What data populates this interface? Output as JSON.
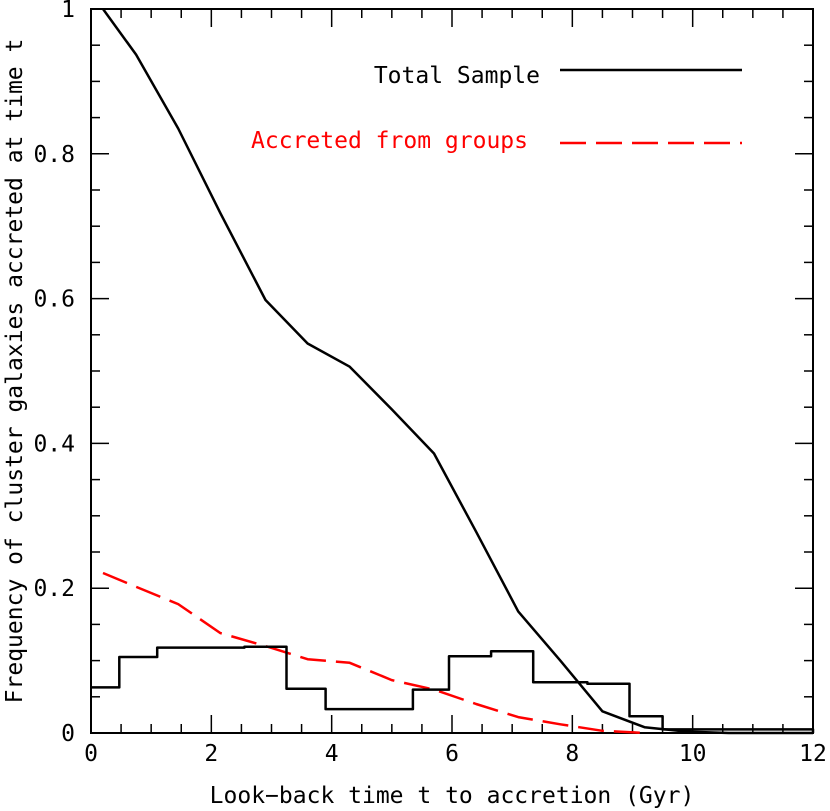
{
  "chart_data": {
    "type": "line",
    "xlabel": "Look−back time t to accretion (Gyr)",
    "ylabel": "Frequency of cluster galaxies accreted at time t",
    "xlim": [
      0,
      12
    ],
    "ylim": [
      0,
      1
    ],
    "xticks": [
      0,
      2,
      4,
      6,
      8,
      10,
      12
    ],
    "xtick_labels": [
      "0",
      "2",
      "4",
      "6",
      "8",
      "10",
      "12"
    ],
    "yticks": [
      0,
      0.2,
      0.4,
      0.6,
      0.8,
      1
    ],
    "ytick_labels": [
      "0",
      "0.2",
      "0.4",
      "0.6",
      "0.8",
      "1"
    ],
    "grid": false,
    "legend_position": "top-right",
    "series": [
      {
        "name": "Total Sample",
        "style": "solid",
        "color": "#000000",
        "x": [
          0.2,
          0.75,
          1.45,
          2.15,
          2.9,
          3.6,
          4.3,
          5.0,
          5.7,
          6.4,
          7.1,
          7.8,
          8.5,
          9.2,
          9.9,
          10.6,
          11.3,
          12.0
        ],
        "y": [
          1.0,
          0.937,
          0.835,
          0.718,
          0.598,
          0.538,
          0.506,
          0.447,
          0.386,
          0.278,
          0.168,
          0.1,
          0.03,
          0.008,
          0.002,
          0.0,
          0.0,
          0.0
        ]
      },
      {
        "name": "Accreted from groups",
        "style": "dashed",
        "color": "#ff0000",
        "x": [
          0.2,
          0.75,
          1.45,
          2.15,
          2.9,
          3.6,
          4.3,
          5.0,
          5.7,
          6.4,
          7.1,
          7.8,
          8.5,
          9.2
        ],
        "y": [
          0.221,
          0.202,
          0.178,
          0.138,
          0.12,
          0.102,
          0.097,
          0.073,
          0.06,
          0.04,
          0.022,
          0.012,
          0.003,
          0.0
        ]
      },
      {
        "name": "",
        "style": "step",
        "color": "#000000",
        "bin_edges": [
          0,
          0.47,
          1.1,
          2.55,
          3.25,
          3.9,
          5.35,
          5.95,
          6.65,
          7.35,
          8.25,
          8.95,
          9.5,
          12.0
        ],
        "values": [
          0.063,
          0.105,
          0.118,
          0.119,
          0.061,
          0.033,
          0.06,
          0.106,
          0.113,
          0.07,
          0.068,
          0.023,
          0.005,
          0.0
        ]
      }
    ],
    "legend": [
      {
        "label": "Total Sample",
        "color": "#000000",
        "style": "solid"
      },
      {
        "label": "Accreted from groups",
        "color": "#ff0000",
        "style": "dashed"
      }
    ]
  }
}
